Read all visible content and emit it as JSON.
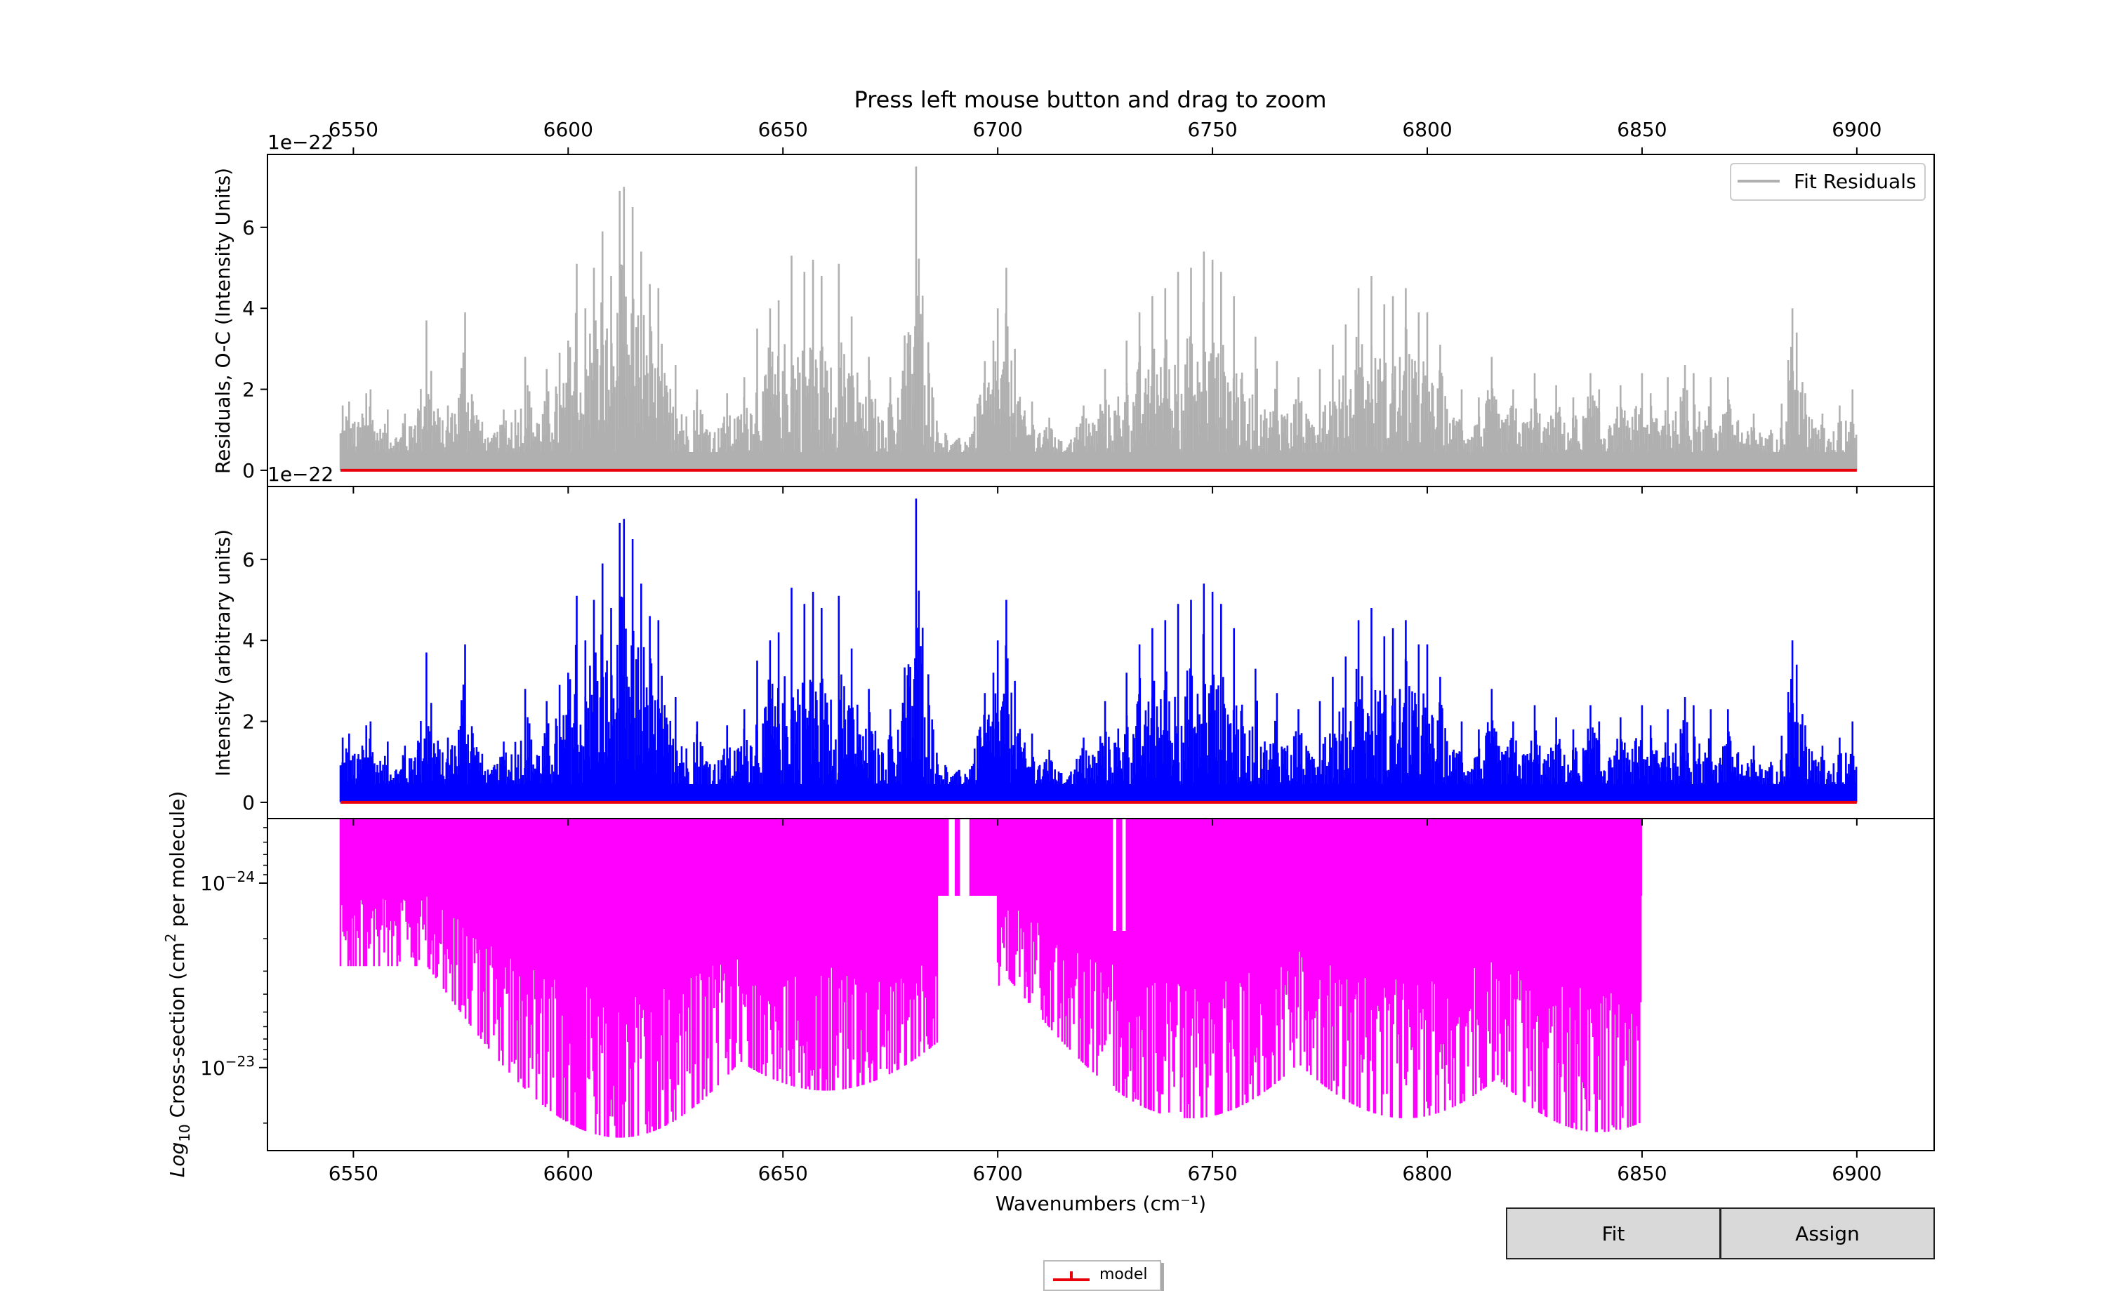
{
  "figure_title": "Press left mouse button and drag to zoom",
  "buttons": {
    "fit_label": "Fit",
    "assign_label": "Assign"
  },
  "colors": {
    "residuals": "#b0b0b0",
    "intensity": "#0000ff",
    "cross_section": "#ff00ff",
    "model": "#e8000b"
  },
  "chart_data": [
    {
      "type": "line",
      "panel": "residuals",
      "title": "",
      "xlabel": "",
      "ylabel": "Residuals, O-C (Intensity Units)",
      "offset_label": "1e−22",
      "xlim": [
        6530,
        6918
      ],
      "ylim": [
        -0.4,
        7.8
      ],
      "x_ticks_top": [
        6550,
        6600,
        6650,
        6700,
        6750,
        6800,
        6850,
        6900
      ],
      "y_ticks": [
        0,
        2,
        4,
        6
      ],
      "grid": false,
      "legend": {
        "position": "top-right",
        "entries": [
          "Fit Residuals"
        ]
      },
      "series": [
        {
          "name": "Fit Residuals",
          "x_range": [
            6547,
            6900
          ],
          "baseline": 0.5,
          "peaks": [
            [
              6547.5,
              1.6
            ],
            [
              6549,
              1.7
            ],
            [
              6553,
              1.9
            ],
            [
              6554,
              2.0
            ],
            [
              6558,
              1.5
            ],
            [
              6562,
              1.4
            ],
            [
              6565,
              1.3
            ],
            [
              6567,
              3.7
            ],
            [
              6568,
              1.5
            ],
            [
              6572,
              1.6
            ],
            [
              6575,
              1.3
            ],
            [
              6576,
              3.9
            ],
            [
              6580,
              1.2
            ],
            [
              6585,
              1.5
            ],
            [
              6590,
              2.8
            ],
            [
              6595,
              2.5
            ],
            [
              6598,
              2.9
            ],
            [
              6600,
              3.2
            ],
            [
              6602,
              5.1
            ],
            [
              6604,
              4.0
            ],
            [
              6606,
              5.0
            ],
            [
              6608,
              5.9
            ],
            [
              6610,
              4.8
            ],
            [
              6612,
              6.9
            ],
            [
              6613,
              7.0
            ],
            [
              6615,
              6.5
            ],
            [
              6617,
              5.4
            ],
            [
              6619,
              4.6
            ],
            [
              6621,
              4.5
            ],
            [
              6625,
              2.6
            ],
            [
              6630,
              2.0
            ],
            [
              6637,
              1.9
            ],
            [
              6641,
              2.3
            ],
            [
              6644,
              3.5
            ],
            [
              6647,
              4.0
            ],
            [
              6649,
              4.2
            ],
            [
              6652,
              5.3
            ],
            [
              6655,
              4.9
            ],
            [
              6657,
              5.2
            ],
            [
              6659,
              4.8
            ],
            [
              6663,
              5.1
            ],
            [
              6666,
              3.8
            ],
            [
              6670,
              2.8
            ],
            [
              6675,
              2.3
            ],
            [
              6681,
              7.5
            ],
            [
              6683,
              2.1
            ],
            [
              6685,
              1.8
            ],
            [
              6691,
              0.8
            ],
            [
              6694,
              0.9
            ],
            [
              6696,
              1.6
            ],
            [
              6697,
              2.7
            ],
            [
              6699,
              3.2
            ],
            [
              6700,
              4.0
            ],
            [
              6702,
              5.0
            ],
            [
              6704,
              3.0
            ],
            [
              6708,
              1.7
            ],
            [
              6712,
              1.3
            ],
            [
              6720,
              1.6
            ],
            [
              6725,
              2.5
            ],
            [
              6730,
              3.2
            ],
            [
              6733,
              3.9
            ],
            [
              6736,
              4.3
            ],
            [
              6739,
              4.5
            ],
            [
              6742,
              4.9
            ],
            [
              6745,
              5.0
            ],
            [
              6748,
              5.4
            ],
            [
              6750,
              5.2
            ],
            [
              6752,
              4.9
            ],
            [
              6755,
              4.3
            ],
            [
              6760,
              3.3
            ],
            [
              6765,
              2.7
            ],
            [
              6770,
              2.3
            ],
            [
              6775,
              2.5
            ],
            [
              6778,
              3.1
            ],
            [
              6781,
              3.6
            ],
            [
              6784,
              4.5
            ],
            [
              6787,
              4.8
            ],
            [
              6790,
              4.1
            ],
            [
              6792,
              4.3
            ],
            [
              6795,
              4.5
            ],
            [
              6798,
              3.9
            ],
            [
              6800,
              3.9
            ],
            [
              6803,
              3.1
            ],
            [
              6808,
              2.0
            ],
            [
              6812,
              1.8
            ],
            [
              6815,
              2.8
            ],
            [
              6820,
              2.0
            ],
            [
              6825,
              2.4
            ],
            [
              6830,
              2.1
            ],
            [
              6834,
              1.8
            ],
            [
              6838,
              2.4
            ],
            [
              6840,
              2.0
            ],
            [
              6845,
              2.1
            ],
            [
              6850,
              2.4
            ],
            [
              6852,
              1.9
            ],
            [
              6856,
              2.3
            ],
            [
              6860,
              2.6
            ],
            [
              6862,
              2.4
            ],
            [
              6866,
              2.3
            ],
            [
              6870,
              2.3
            ],
            [
              6876,
              1.4
            ],
            [
              6880,
              1.0
            ],
            [
              6885,
              4.0
            ],
            [
              6886,
              3.4
            ],
            [
              6888,
              1.9
            ],
            [
              6892,
              1.4
            ],
            [
              6896,
              1.6
            ],
            [
              6899,
              2.0
            ]
          ]
        },
        {
          "name": "model",
          "values": "flat line at 0"
        }
      ]
    },
    {
      "type": "line",
      "panel": "intensity",
      "title": "",
      "xlabel": "",
      "ylabel": "Intensity (arbitrary units)",
      "offset_label": "1e−22",
      "xlim": [
        6530,
        6918
      ],
      "ylim": [
        -0.4,
        7.8
      ],
      "y_ticks": [
        0,
        2,
        4,
        6
      ],
      "grid": false,
      "series": [
        {
          "name": "",
          "x_range": [
            6547,
            6900
          ],
          "baseline": 0.5,
          "peaks": "same profile as residuals panel"
        },
        {
          "name": "model",
          "values": "flat line at 0"
        }
      ]
    },
    {
      "type": "line",
      "panel": "cross_section",
      "title": "",
      "xlabel": "Wavenumbers (cm⁻¹)",
      "ylabel_prefix": "Log",
      "ylabel_sub": "10",
      "ylabel_mid": " Cross-section (cm",
      "ylabel_sup": "2",
      "ylabel_suffix": " per molecule)",
      "xlim": [
        6530,
        6918
      ],
      "y_scale": "log-inverted",
      "y_tick_base": "10",
      "y_ticks": [
        {
          "value": 1e-24,
          "exp": "−24"
        },
        {
          "value": 1e-23,
          "exp": "−23"
        }
      ],
      "x_ticks": [
        6550,
        6600,
        6650,
        6700,
        6750,
        6800,
        6850,
        6900
      ],
      "grid": false,
      "series": [
        {
          "name": "",
          "x_range": [
            6547,
            6850
          ],
          "envelope_description": "inverted stick spectrum hanging from top of panel; deep bands near 6612, 6660, 6745, 6795, 6840"
        }
      ]
    }
  ],
  "legend_model": {
    "label": "model"
  }
}
